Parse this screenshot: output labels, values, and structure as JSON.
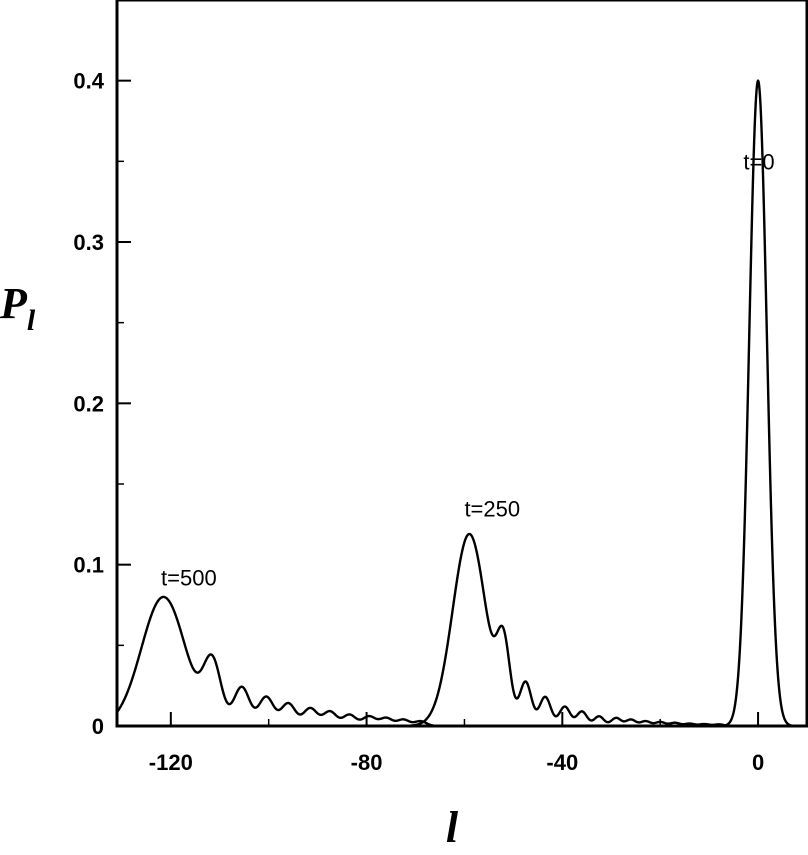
{
  "chart_data": {
    "type": "line",
    "title": "",
    "xlabel": "l",
    "ylabel": "P",
    "ylabel_subscript": "l",
    "xlim": [
      -131,
      10
    ],
    "ylim": [
      0,
      0.45
    ],
    "grid": false,
    "legend": "none",
    "xticks": [
      -120,
      -80,
      -40,
      0
    ],
    "xtick_labels": [
      "-120",
      "-80",
      "-40",
      "0"
    ],
    "yticks": [
      0,
      0.1,
      0.2,
      0.3,
      0.4
    ],
    "ytick_labels": [
      "0",
      "0.1",
      "0.2",
      "0.3",
      "0.4"
    ],
    "series": [
      {
        "label": "t=0",
        "annotation_at": [
          -3,
          0.345
        ],
        "peaks": [
          {
            "x": 0,
            "y": 0.4,
            "w": 1.8
          }
        ]
      },
      {
        "label": "t=250",
        "annotation_at": [
          -60,
          0.13
        ],
        "peaks": [
          {
            "x": -59,
            "y": 0.119,
            "w": 3.4
          },
          {
            "x": -52,
            "y": 0.046,
            "w": 1.35
          },
          {
            "x": -47.5,
            "y": 0.027,
            "w": 1.2
          },
          {
            "x": -43.5,
            "y": 0.018,
            "w": 1.15
          },
          {
            "x": -39.5,
            "y": 0.012,
            "w": 1.1
          },
          {
            "x": -36,
            "y": 0.009,
            "w": 1.05
          },
          {
            "x": -32.5,
            "y": 0.006,
            "w": 1.0
          },
          {
            "x": -29,
            "y": 0.005,
            "w": 1.0
          },
          {
            "x": -26,
            "y": 0.004,
            "w": 1.0
          },
          {
            "x": -23,
            "y": 0.003,
            "w": 1.0
          },
          {
            "x": -20,
            "y": 0.0025,
            "w": 1.0
          },
          {
            "x": -17,
            "y": 0.002,
            "w": 1.0
          },
          {
            "x": -14,
            "y": 0.0015,
            "w": 1.0
          },
          {
            "x": -11,
            "y": 0.0012,
            "w": 1.0
          },
          {
            "x": -8,
            "y": 0.001,
            "w": 1.0
          }
        ]
      },
      {
        "label": "t=500",
        "annotation_at": [
          -122,
          0.087
        ],
        "peaks": [
          {
            "x": -121.5,
            "y": 0.08,
            "w": 4.5
          },
          {
            "x": -111.5,
            "y": 0.037,
            "w": 1.8
          },
          {
            "x": -105.5,
            "y": 0.024,
            "w": 1.6
          },
          {
            "x": -100.5,
            "y": 0.018,
            "w": 1.5
          },
          {
            "x": -96,
            "y": 0.014,
            "w": 1.45
          },
          {
            "x": -91.5,
            "y": 0.011,
            "w": 1.4
          },
          {
            "x": -87.5,
            "y": 0.009,
            "w": 1.35
          },
          {
            "x": -83.5,
            "y": 0.007,
            "w": 1.3
          },
          {
            "x": -79.5,
            "y": 0.006,
            "w": 1.3
          },
          {
            "x": -76,
            "y": 0.005,
            "w": 1.25
          },
          {
            "x": -72.5,
            "y": 0.004,
            "w": 1.2
          },
          {
            "x": -69,
            "y": 0.003,
            "w": 1.2
          }
        ]
      }
    ]
  }
}
